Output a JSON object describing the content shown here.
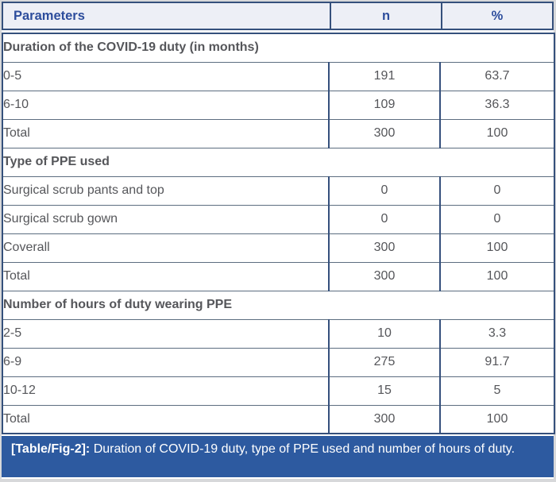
{
  "colors": {
    "border_navy": "#35507c",
    "header_bg": "#edeff6",
    "header_text": "#2d4d9c",
    "row_separator": "#5c6d80",
    "body_text": "#55565a",
    "section_text": "#2b2c2e",
    "caption_bg": "#2d5aa0",
    "caption_text": "#ffffff",
    "page_margin": "#d7d8da"
  },
  "table": {
    "headers": [
      "Parameters",
      "n",
      "%"
    ],
    "sections": [
      {
        "title": "Duration of the COVID-19 duty (in months)",
        "rows": [
          [
            "0-5",
            "191",
            "63.7"
          ],
          [
            "6-10",
            "109",
            "36.3"
          ],
          [
            "Total",
            "300",
            "100"
          ]
        ]
      },
      {
        "title": "Type of PPE used",
        "rows": [
          [
            "Surgical scrub pants and top",
            "0",
            "0"
          ],
          [
            "Surgical scrub gown",
            "0",
            "0"
          ],
          [
            "Coverall",
            "300",
            "100"
          ],
          [
            "Total",
            "300",
            "100"
          ]
        ]
      },
      {
        "title": "Number of hours of duty wearing PPE",
        "rows": [
          [
            "2-5",
            "10",
            "3.3"
          ],
          [
            "6-9",
            "275",
            "91.7"
          ],
          [
            "10-12",
            "15",
            "5"
          ],
          [
            "Total",
            "300",
            "100"
          ]
        ]
      }
    ]
  },
  "caption": {
    "label": "[Table/Fig-2]:",
    "text": " Duration of COVID-19 duty, type of PPE used and number of hours of duty."
  }
}
